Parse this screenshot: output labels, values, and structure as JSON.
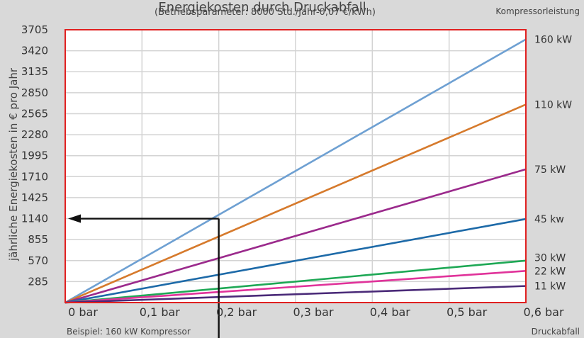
{
  "chart_data": {
    "type": "line",
    "title": "Energiekosten durch Druckabfall",
    "subtitle": "(Betriebsparameter: 8000 Std./Jahr-0,07 €/kWh)",
    "ylabel": "jährliche Energiekosten in € pro Jahr",
    "xlabel": "Druckabfall",
    "legend_title": "Kompressorleistung",
    "example_note": "Beispiel: 160 kW Kompressor",
    "x": [
      0,
      0.6
    ],
    "x_ticks": [
      0,
      0.1,
      0.2,
      0.3,
      0.4,
      0.5,
      0.6
    ],
    "x_tick_labels": [
      "0 bar",
      "0,1 bar",
      "0,2 bar",
      "0,3 bar",
      "0,4 bar",
      "0,5 bar",
      "0,6 bar"
    ],
    "y_ticks": [
      285,
      570,
      855,
      1140,
      1425,
      1710,
      1995,
      2280,
      2565,
      2850,
      3135,
      3420,
      3705
    ],
    "y_tick_labels": [
      "285",
      "570",
      "855",
      "1140",
      "1425",
      "1710",
      "1995",
      "2280",
      "2565",
      "2850",
      "3135",
      "3420",
      "3705"
    ],
    "ylim": [
      0,
      3705
    ],
    "xlim": [
      0,
      0.6
    ],
    "grid": true,
    "series": [
      {
        "name": "160 kW",
        "color": "#6ea0d2",
        "values": [
          0,
          3575
        ]
      },
      {
        "name": "110 kW",
        "color": "#d67a2c",
        "values": [
          0,
          2690
        ]
      },
      {
        "name": "75 kW",
        "color": "#9b2a8c",
        "values": [
          0,
          1810
        ]
      },
      {
        "name": "45 kw",
        "color": "#1d6aa8",
        "values": [
          0,
          1135
        ]
      },
      {
        "name": "30 kW",
        "color": "#1ea855",
        "values": [
          0,
          570
        ]
      },
      {
        "name": "22 kW",
        "color": "#e0339a",
        "values": [
          0,
          430
        ]
      },
      {
        "name": "11 kW",
        "color": "#4a2a78",
        "values": [
          0,
          225
        ]
      }
    ],
    "example": {
      "x": 0.2,
      "y": 1140
    },
    "frame_color": "#e02020",
    "arrow_color": "#111111"
  }
}
